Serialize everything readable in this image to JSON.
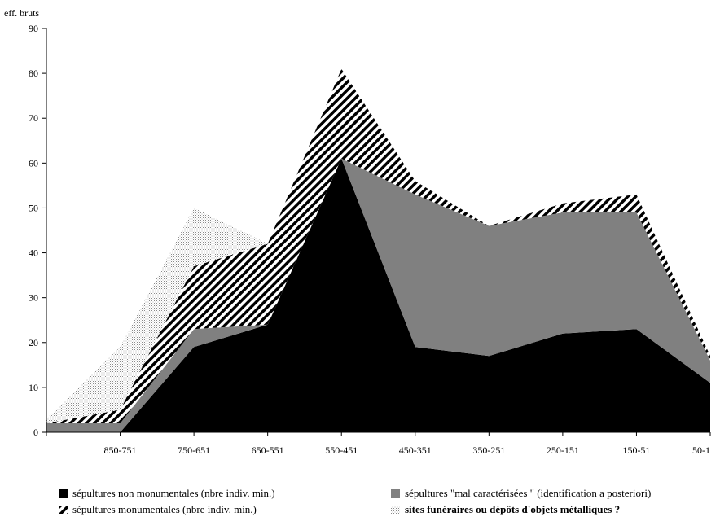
{
  "chart_data": {
    "type": "area",
    "stacked": true,
    "ylabel": "eff. bruts",
    "ylim": [
      0,
      90
    ],
    "yticks": [
      0,
      10,
      20,
      30,
      40,
      50,
      60,
      70,
      80,
      90
    ],
    "categories": [
      "",
      "850-751",
      "750-651",
      "650-551",
      "550-451",
      "450-351",
      "350-251",
      "250-151",
      "150-51",
      "50-1"
    ],
    "grid": false,
    "legend_position": "bottom",
    "series": [
      {
        "name": "sépultures non monumentales (nbre indiv. min.)",
        "color": "#000000",
        "pattern": "solid",
        "values": [
          0,
          0,
          19,
          24,
          61,
          19,
          17,
          22,
          23,
          11
        ]
      },
      {
        "name": "sépultures \"mal caractérisées \" (identification a posteriori)",
        "color": "#808080",
        "pattern": "solid",
        "values": [
          2,
          2,
          4,
          0,
          0,
          34,
          29,
          27,
          26,
          5
        ]
      },
      {
        "name": "sépultures monumentales (nbre indiv. min.)",
        "color": "#000000",
        "pattern": "diagonal-stripes",
        "values": [
          0,
          3,
          14,
          18,
          20,
          3,
          0,
          2,
          4,
          1
        ]
      },
      {
        "name": "sites funéraires ou dépôts d'objets métalliques ?",
        "color": "#b0b0b0",
        "pattern": "dots",
        "values": [
          1,
          14,
          13,
          0,
          0,
          0,
          0,
          0,
          0,
          0
        ]
      }
    ]
  }
}
